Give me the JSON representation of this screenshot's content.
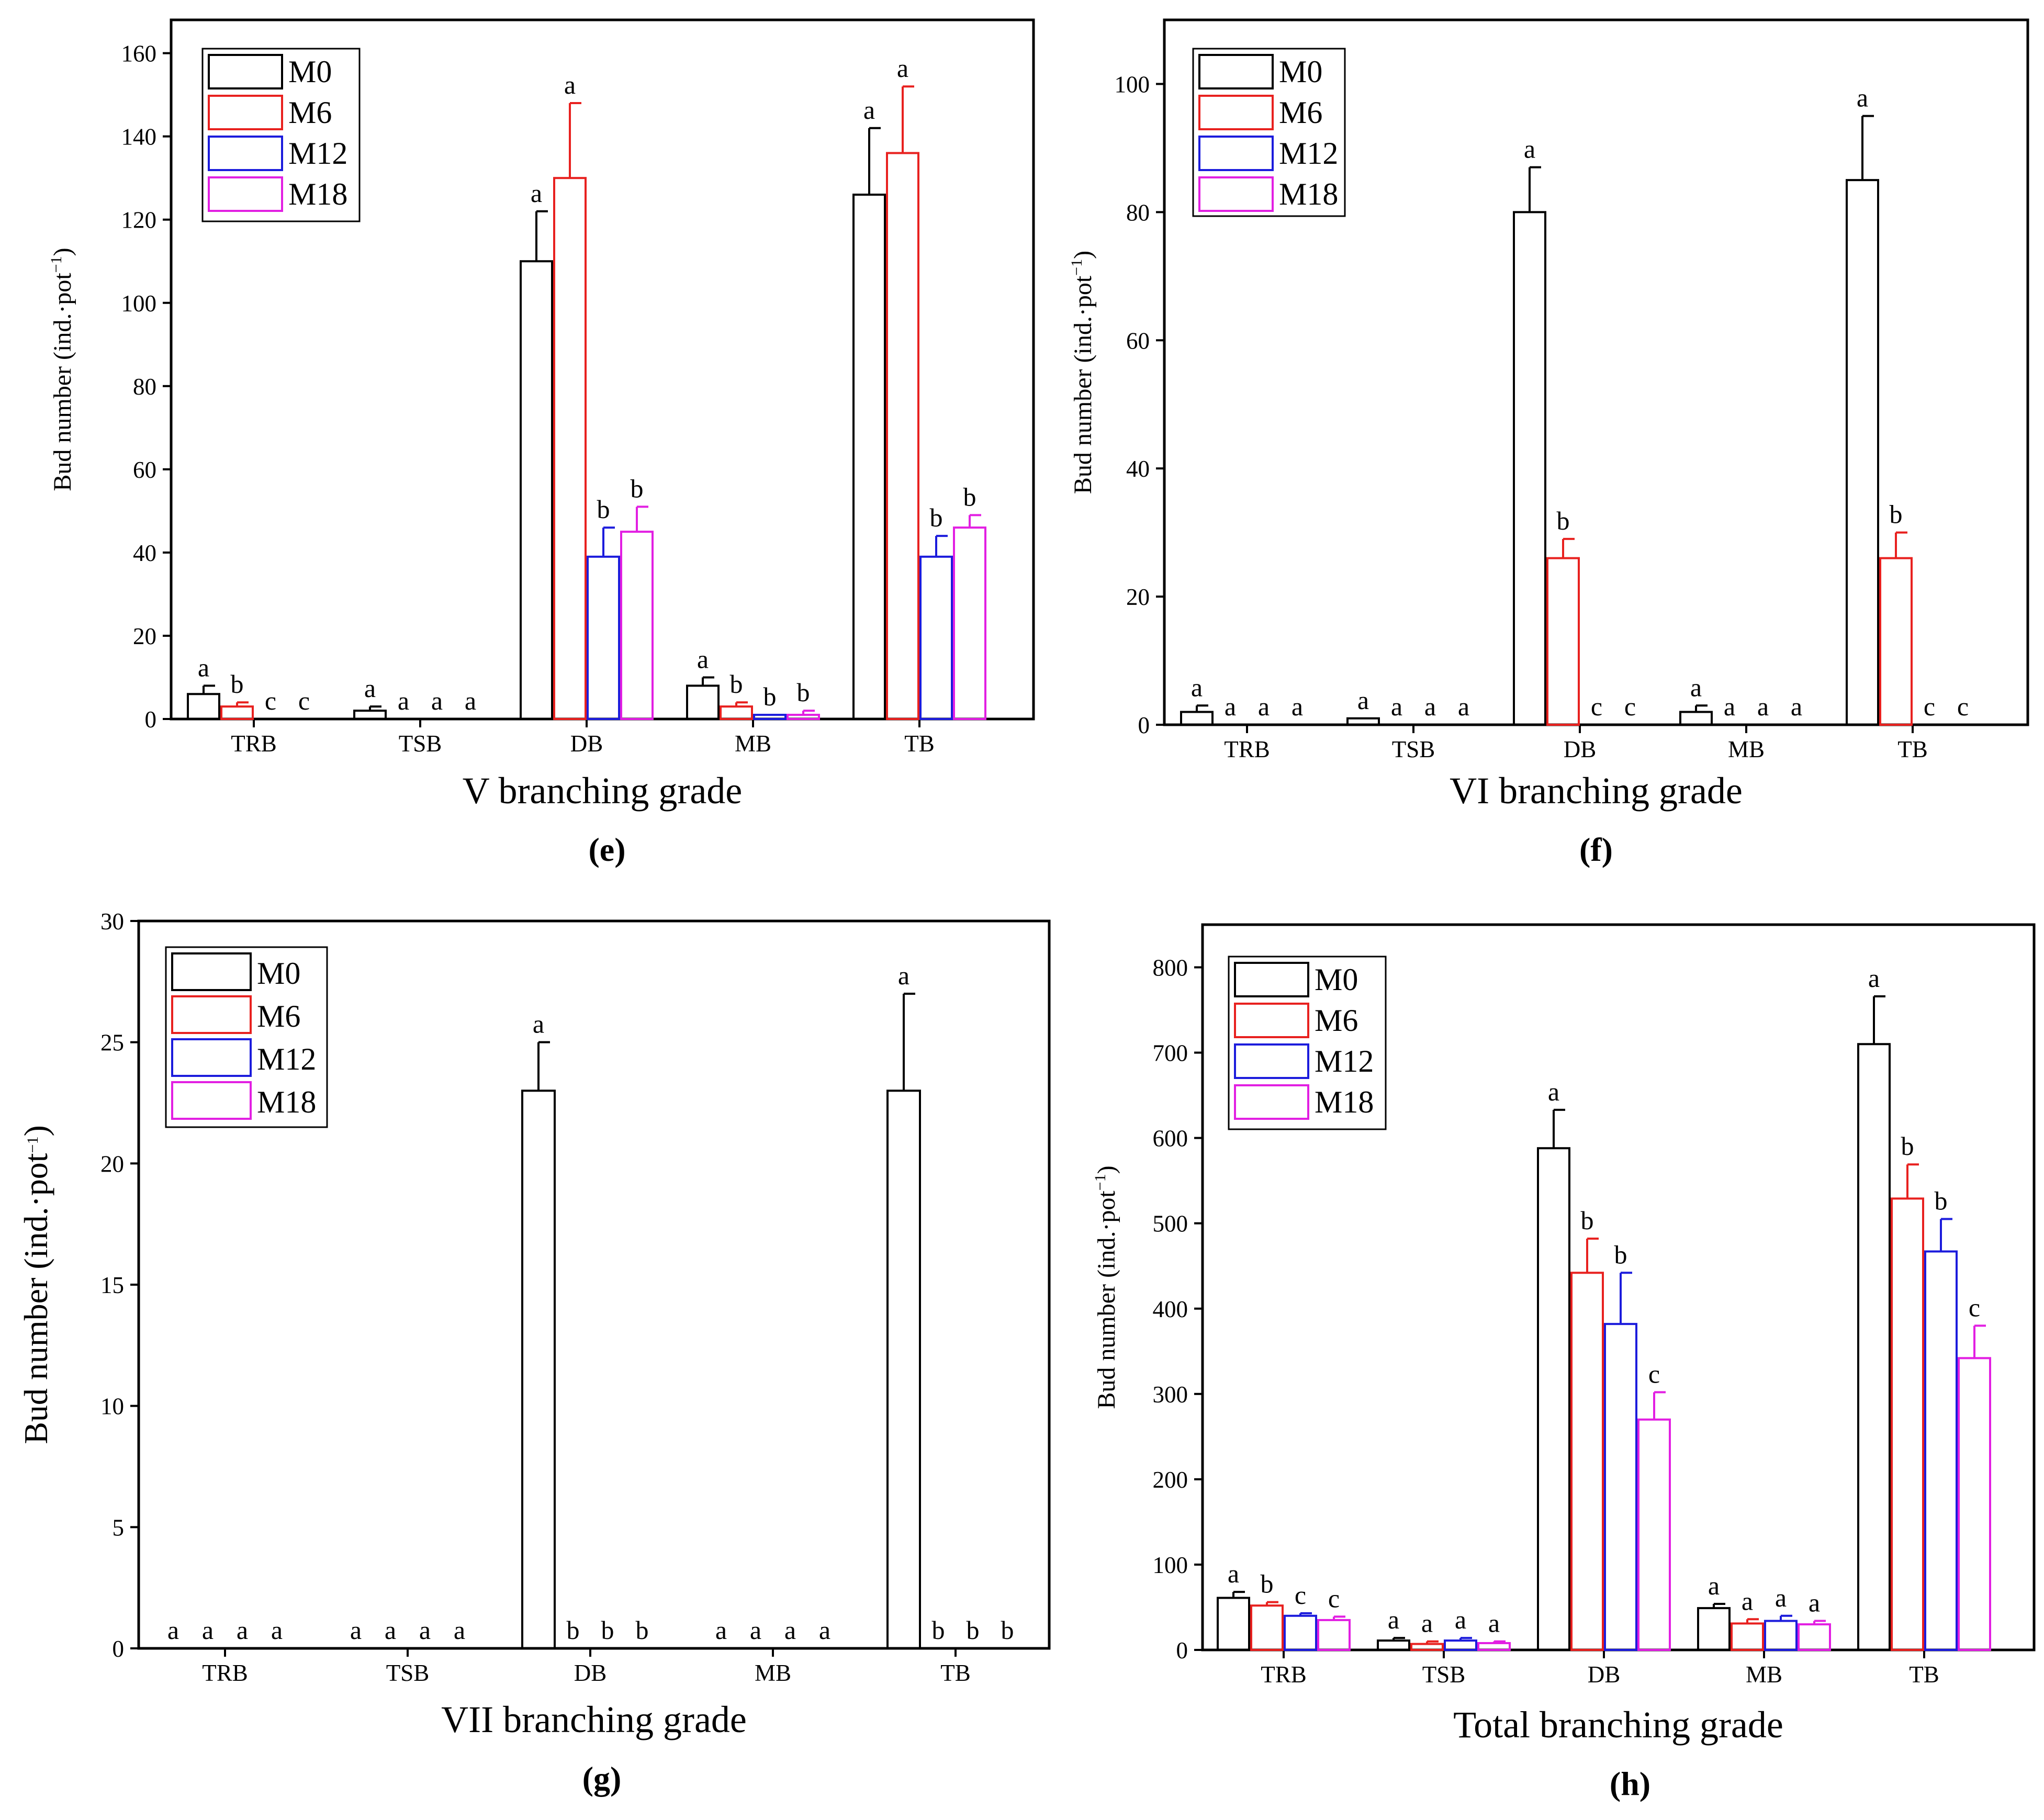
{
  "chart_data": [
    {
      "type": "bar",
      "panel_label": "(e)",
      "title": "",
      "xlabel": "V  branching grade",
      "ylabel": "Bud number (ind.·pot",
      "ylabel_sup": "−1",
      "ylabel_close": ")",
      "ylim": [
        0,
        168
      ],
      "yticks": [
        0,
        20,
        40,
        60,
        80,
        100,
        120,
        140,
        160
      ],
      "legend_position": "top-left",
      "categories": [
        "TRB",
        "TSB",
        "DB",
        "MB",
        "TB"
      ],
      "series": [
        {
          "name": "M0",
          "color": "#000000",
          "values": [
            6,
            2,
            110,
            8,
            126
          ],
          "errors": [
            2,
            1,
            12,
            2,
            16
          ],
          "letters": [
            "a",
            "a",
            "a",
            "a",
            "a"
          ]
        },
        {
          "name": "M6",
          "color": "#e8211f",
          "values": [
            3,
            0,
            130,
            3,
            136
          ],
          "errors": [
            1,
            0,
            18,
            1,
            16
          ],
          "letters": [
            "b",
            "a",
            "a",
            "b",
            "a"
          ]
        },
        {
          "name": "M12",
          "color": "#1c1cdc",
          "values": [
            0,
            0,
            39,
            1,
            39
          ],
          "errors": [
            0,
            0,
            7,
            0,
            5
          ],
          "letters": [
            "c",
            "a",
            "b",
            "b",
            "b"
          ]
        },
        {
          "name": "M18",
          "color": "#e21fe2",
          "values": [
            0,
            0,
            45,
            1,
            46
          ],
          "errors": [
            0,
            0,
            6,
            1,
            3
          ],
          "letters": [
            "c",
            "a",
            "b",
            "b",
            "b"
          ]
        }
      ]
    },
    {
      "type": "bar",
      "panel_label": "(f)",
      "title": "",
      "xlabel": "VI  branching grade",
      "ylabel": "Bud number (ind.·pot",
      "ylabel_sup": "−1",
      "ylabel_close": ")",
      "ylim": [
        0,
        110
      ],
      "yticks": [
        0,
        20,
        40,
        60,
        80,
        100
      ],
      "legend_position": "top-left",
      "categories": [
        "TRB",
        "TSB",
        "DB",
        "MB",
        "TB"
      ],
      "series": [
        {
          "name": "M0",
          "color": "#000000",
          "values": [
            2,
            1,
            80,
            2,
            85
          ],
          "errors": [
            1,
            0,
            7,
            1,
            10
          ],
          "letters": [
            "a",
            "a",
            "a",
            "a",
            "a"
          ]
        },
        {
          "name": "M6",
          "color": "#e8211f",
          "values": [
            0,
            0,
            26,
            0,
            26
          ],
          "errors": [
            0,
            0,
            3,
            0,
            4
          ],
          "letters": [
            "a",
            "a",
            "b",
            "a",
            "b"
          ]
        },
        {
          "name": "M12",
          "color": "#1c1cdc",
          "values": [
            0,
            0,
            0,
            0,
            0
          ],
          "errors": [
            0,
            0,
            0,
            0,
            0
          ],
          "letters": [
            "a",
            "a",
            "c",
            "a",
            "c"
          ]
        },
        {
          "name": "M18",
          "color": "#e21fe2",
          "values": [
            0,
            0,
            0,
            0,
            0
          ],
          "errors": [
            0,
            0,
            0,
            0,
            0
          ],
          "letters": [
            "a",
            "a",
            "c",
            "a",
            "c"
          ]
        }
      ]
    },
    {
      "type": "bar",
      "panel_label": "(g)",
      "title": "",
      "xlabel": "VII  branching grade",
      "ylabel": "Bud number (ind.·pot",
      "ylabel_sup": "−1",
      "ylabel_close": ")",
      "ylim": [
        0,
        30
      ],
      "yticks": [
        0,
        5,
        10,
        15,
        20,
        25,
        30
      ],
      "legend_position": "top-left",
      "categories": [
        "TRB",
        "TSB",
        "DB",
        "MB",
        "TB"
      ],
      "series": [
        {
          "name": "M0",
          "color": "#000000",
          "values": [
            0,
            0,
            23,
            0,
            23
          ],
          "errors": [
            0,
            0,
            2,
            0,
            4
          ],
          "letters": [
            "a",
            "a",
            "a",
            "a",
            "a"
          ]
        },
        {
          "name": "M6",
          "color": "#e8211f",
          "values": [
            0,
            0,
            0,
            0,
            0
          ],
          "errors": [
            0,
            0,
            0,
            0,
            0
          ],
          "letters": [
            "a",
            "a",
            "b",
            "a",
            "b"
          ]
        },
        {
          "name": "M12",
          "color": "#1c1cdc",
          "values": [
            0,
            0,
            0,
            0,
            0
          ],
          "errors": [
            0,
            0,
            0,
            0,
            0
          ],
          "letters": [
            "a",
            "a",
            "b",
            "a",
            "b"
          ]
        },
        {
          "name": "M18",
          "color": "#e21fe2",
          "values": [
            0,
            0,
            0,
            0,
            0
          ],
          "errors": [
            0,
            0,
            0,
            0,
            0
          ],
          "letters": [
            "a",
            "a",
            "b",
            "a",
            "b"
          ]
        }
      ]
    },
    {
      "type": "bar",
      "panel_label": "(h)",
      "title": "",
      "xlabel": "Total  branching grade",
      "ylabel": "Bud number (ind.·pot",
      "ylabel_sup": "−1",
      "ylabel_close": ")",
      "ylim": [
        0,
        850
      ],
      "yticks": [
        0,
        100,
        200,
        300,
        400,
        500,
        600,
        700,
        800
      ],
      "legend_position": "top-left",
      "categories": [
        "TRB",
        "TSB",
        "DB",
        "MB",
        "TB"
      ],
      "series": [
        {
          "name": "M0",
          "color": "#000000",
          "values": [
            61,
            11,
            588,
            49,
            710
          ],
          "errors": [
            7,
            3,
            45,
            5,
            56
          ],
          "letters": [
            "a",
            "a",
            "a",
            "a",
            "a"
          ]
        },
        {
          "name": "M6",
          "color": "#e8211f",
          "values": [
            52,
            7,
            442,
            31,
            529
          ],
          "errors": [
            4,
            3,
            40,
            5,
            40
          ],
          "letters": [
            "b",
            "a",
            "b",
            "a",
            "b"
          ]
        },
        {
          "name": "M12",
          "color": "#1c1cdc",
          "values": [
            40,
            11,
            382,
            34,
            467
          ],
          "errors": [
            3,
            3,
            60,
            6,
            38
          ],
          "letters": [
            "c",
            "a",
            "b",
            "a",
            "b"
          ]
        },
        {
          "name": "M18",
          "color": "#e21fe2",
          "values": [
            35,
            8,
            270,
            30,
            342
          ],
          "errors": [
            4,
            2,
            32,
            4,
            38
          ],
          "letters": [
            "c",
            "a",
            "c",
            "a",
            "c"
          ]
        }
      ]
    }
  ]
}
